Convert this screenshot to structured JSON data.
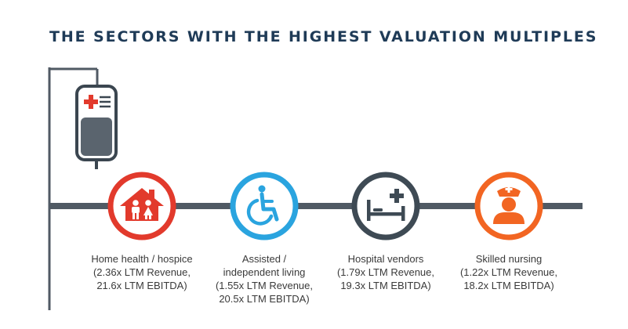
{
  "title": "THE SECTORS WITH THE HIGHEST VALUATION MULTIPLES",
  "colors": {
    "timeline": "#505a64",
    "bag_outline": "#3b4650",
    "bag_fill": "#5a646e",
    "cross_red": "#e23a2c"
  },
  "sectors": [
    {
      "icon": "home-family-icon",
      "color": "#e23a2c",
      "lines": [
        "Home health / hospice",
        "(2.36x LTM Revenue,",
        "21.6x LTM EBITDA)"
      ]
    },
    {
      "icon": "wheelchair-icon",
      "color": "#2aa4df",
      "lines": [
        "Assisted /",
        "independent living",
        "(1.55x LTM Revenue,",
        "20.5x LTM EBITDA)"
      ]
    },
    {
      "icon": "hospital-bed-icon",
      "color": "#3e4a54",
      "lines": [
        "Hospital vendors",
        "(1.79x LTM Revenue,",
        "19.3x LTM EBITDA)"
      ]
    },
    {
      "icon": "nurse-icon",
      "color": "#f26522",
      "lines": [
        "Skilled nursing",
        "(1.22x LTM Revenue,",
        "18.2x LTM EBITDA)"
      ]
    }
  ]
}
